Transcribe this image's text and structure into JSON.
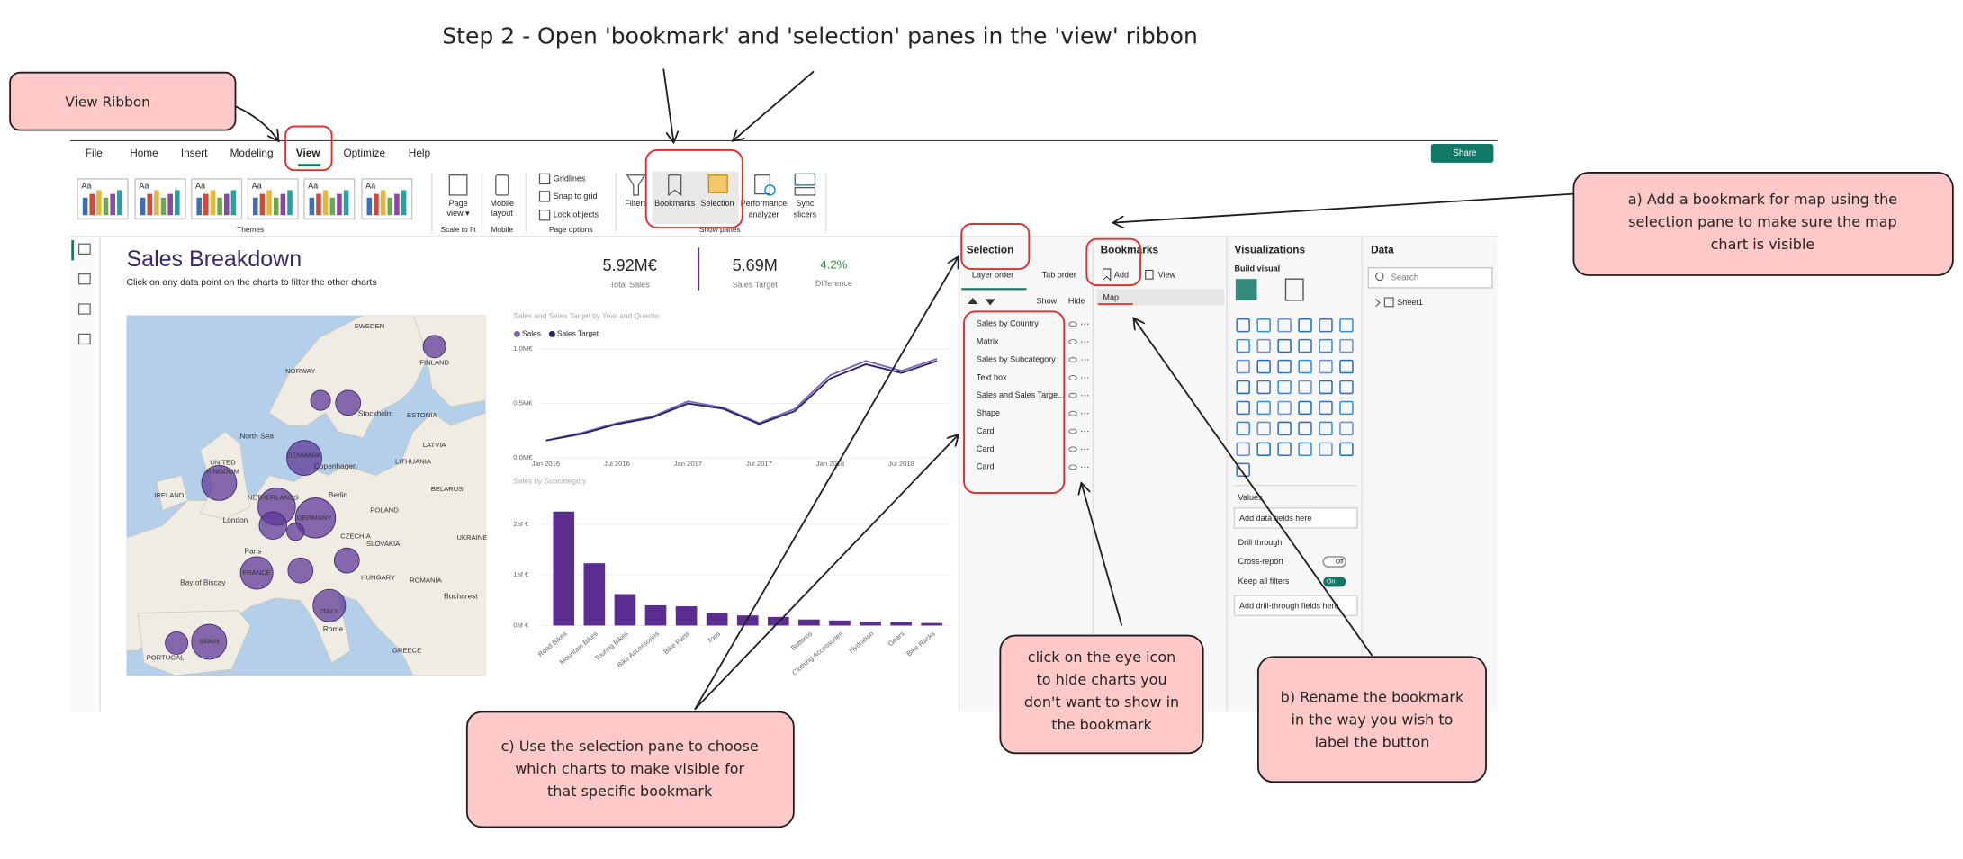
{
  "title": "Step 2 - Open 'bookmark' and 'selection' panes in the 'view' ribbon",
  "callouts": {
    "view_ribbon": "View Ribbon",
    "a": [
      "a) Add a bookmark for map using the",
      "selection pane to make sure the map",
      "chart is visible"
    ],
    "eye": [
      "click on the eye icon",
      "to hide charts you",
      "don't want to show in",
      "the bookmark"
    ],
    "b": [
      "b) Rename the bookmark",
      "in the way you wish to",
      "label the button"
    ],
    "c": [
      "c) Use the selection pane to choose",
      "which charts to make visible for",
      "that specific bookmark"
    ]
  },
  "ribbon": {
    "tabs": [
      "File",
      "Home",
      "Insert",
      "Modeling",
      "View",
      "Optimize",
      "Help"
    ],
    "share": "Share",
    "theme_sample": "Aa",
    "themes": "Themes",
    "page_view": [
      "Page",
      "view ▾"
    ],
    "scale_to_fit": "Scale to fit",
    "mobile_layout": [
      "Mobile",
      "layout"
    ],
    "mobile": "Mobile",
    "checkboxes": [
      "Gridlines",
      "Snap to grid",
      "Lock objects"
    ],
    "page_options": "Page options",
    "filters": "Filters",
    "bookmarks": "Bookmarks",
    "selection": "Selection",
    "performance": [
      "Performance",
      "analyzer"
    ],
    "sync": [
      "Sync",
      "slicers"
    ],
    "show_panes": "Show panes"
  },
  "report": {
    "title": "Sales Breakdown",
    "subtitle": "Click on any data point on the charts to filter the other charts",
    "kpis": [
      {
        "value": "5.92M€",
        "label": "Total Sales"
      },
      {
        "value": "5.69M",
        "label": "Sales Target"
      },
      {
        "value": "4.2%",
        "label": "Difference"
      }
    ],
    "map_labels": [
      "SWEDEN",
      "NORWAY",
      "FINLAND",
      "ESTONIA",
      "Stockholm",
      "North Sea",
      "DENMARK",
      "LATVIA",
      "Copenhagen",
      "LITHUANIA",
      "UNITED",
      "KINGDOM",
      "IRELAND",
      "NETHERLANDS",
      "Berlin",
      "BELARUS",
      "London",
      "GERMANY",
      "POLAND",
      "CZECHIA",
      "Paris",
      "SLOVAKIA",
      "UKRAINE",
      "FRANCE",
      "HUNGARY",
      "ROMANIA",
      "Bay of Biscay",
      "ITALY",
      "Bucharest",
      "SPAIN",
      "Rome",
      "PORTUGAL",
      "GREECE"
    ]
  },
  "chart_data": [
    {
      "type": "line",
      "title": "Sales and Sales Target by Year and Quarter",
      "categories": [
        "Jan 2016",
        null,
        "Jul 2016",
        null,
        "Jan 2017",
        null,
        "Jul 2017",
        null,
        "Jan 2018",
        null,
        "Jul 2018",
        null
      ],
      "series": [
        {
          "name": "Sales",
          "color": "#7a62b8",
          "values": [
            0.16,
            0.23,
            0.32,
            0.38,
            0.52,
            0.46,
            0.32,
            0.45,
            0.76,
            0.89,
            0.8,
            0.91
          ]
        },
        {
          "name": "Sales Target",
          "color": "#2b1f6b",
          "values": [
            0.16,
            0.22,
            0.31,
            0.37,
            0.5,
            0.45,
            0.31,
            0.43,
            0.73,
            0.86,
            0.78,
            0.89
          ]
        }
      ],
      "ylim": [
        0,
        1.0
      ],
      "yticks": [
        {
          "value": 0,
          "label": "0.0M€"
        },
        {
          "value": 0.5,
          "label": "0.5M€"
        },
        {
          "value": 1.0,
          "label": "1.0M€"
        }
      ],
      "grid": true
    },
    {
      "type": "bar",
      "title": "Sales by Subcategory",
      "categories": [
        "Road Bikes",
        "Mountain Bikes",
        "Touring Bikes",
        "Bike Accessories",
        "Bike Parts",
        "Tops",
        null,
        null,
        "Bottoms",
        "Clothing Accessories",
        "Hydration",
        "Gears",
        "Bike Racks"
      ],
      "values": [
        2.25,
        1.23,
        0.62,
        0.4,
        0.38,
        0.25,
        0.2,
        0.17,
        0.12,
        0.1,
        0.08,
        0.07,
        0.05
      ],
      "color": "#5b2d91",
      "ylim": [
        0,
        2.3
      ],
      "yticks": [
        {
          "value": 0,
          "label": "0M €"
        },
        {
          "value": 1,
          "label": "1M €"
        },
        {
          "value": 2,
          "label": "2M €"
        }
      ],
      "grid": true
    }
  ],
  "selection_pane": {
    "title": "Selection",
    "tabs": [
      "Layer order",
      "Tab order"
    ],
    "show": "Show",
    "hide": "Hide",
    "items": [
      "Sales by Country",
      "Matrix",
      "Sales by Subcategory",
      "Text box",
      "Sales and Sales Targe...",
      "Shape",
      "Card",
      "Card",
      "Card"
    ]
  },
  "bookmarks_pane": {
    "title": "Bookmarks",
    "add": "Add",
    "view": "View",
    "items": [
      "Map"
    ]
  },
  "visualizations_pane": {
    "title": "Visualizations",
    "build_visual": "Build visual",
    "values": "Values",
    "add_data": "Add data fields here",
    "drill_through": "Drill through",
    "cross_report": "Cross-report",
    "off": "Off",
    "keep_filters": "Keep all filters",
    "on": "On",
    "add_drill": "Add drill-through fields here"
  },
  "data_pane": {
    "title": "Data",
    "search": "Search",
    "tables": [
      "Sheet1"
    ]
  }
}
